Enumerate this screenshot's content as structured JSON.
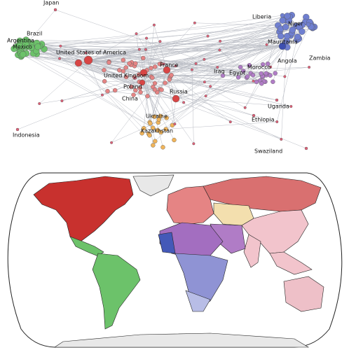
{
  "network": {
    "labels": [
      "Japan",
      "Brazil",
      "Argentina",
      "Mexico",
      "United States of America",
      "United Kingdom",
      "France",
      "Poland",
      "China",
      "Russia",
      "Ukraine",
      "Kazakhstan",
      "Indonesia",
      "Liberia",
      "Niger",
      "Mauritania",
      "Zambia",
      "Angola",
      "Iraq",
      "Egypt",
      "Morocco",
      "Uganda",
      "Ethiopia",
      "Swaziland"
    ]
  }
}
